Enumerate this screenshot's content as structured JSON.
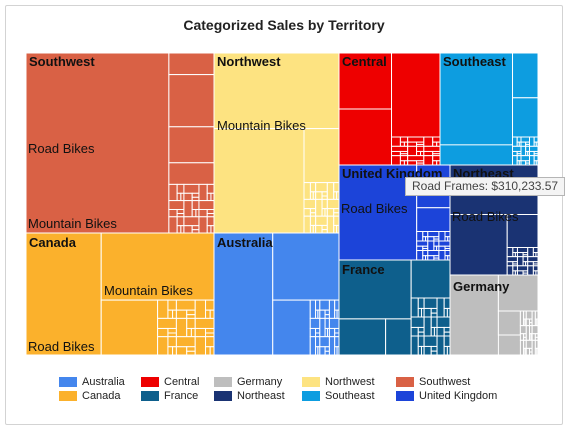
{
  "chart_data": {
    "type": "treemap",
    "title": "Categorized Sales by Territory",
    "tooltip": "Road Frames: $310,233.57",
    "colors": {
      "Southwest": "#d96145",
      "Northwest": "#fde381",
      "Central": "#ee0000",
      "Southeast": "#0d9de0",
      "Canada": "#fbb12c",
      "Australia": "#4486ed",
      "United Kingdom": "#1c44d9",
      "Northeast": "#1a3373",
      "France": "#0e5f8c",
      "Germany": "#bebebe"
    },
    "territories": [
      {
        "name": "Southwest",
        "label_shown": true,
        "categories": [
          "Road Bikes",
          "Mountain Bikes"
        ]
      },
      {
        "name": "Northwest",
        "label_shown": true,
        "categories": [
          "Mountain Bikes"
        ]
      },
      {
        "name": "Central",
        "label_shown": true,
        "categories": []
      },
      {
        "name": "Southeast",
        "label_shown": true,
        "categories": []
      },
      {
        "name": "Canada",
        "label_shown": true,
        "categories": [
          "Mountain Bikes",
          "Road Bikes"
        ]
      },
      {
        "name": "Australia",
        "label_shown": true,
        "categories": []
      },
      {
        "name": "United Kingdom",
        "label_shown": true,
        "categories": [
          "Road Bikes"
        ]
      },
      {
        "name": "Northeast",
        "label_shown": true,
        "categories": [
          "Road Bikes"
        ]
      },
      {
        "name": "France",
        "label_shown": true,
        "categories": []
      },
      {
        "name": "Germany",
        "label_shown": true,
        "categories": []
      }
    ],
    "legend": {
      "position": "bottom",
      "items": [
        "Australia",
        "Central",
        "Germany",
        "Northwest",
        "Southwest",
        "Canada",
        "France",
        "Northeast",
        "Southeast",
        "United Kingdom"
      ]
    }
  }
}
